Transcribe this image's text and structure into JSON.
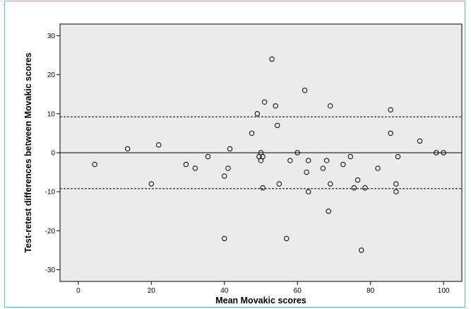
{
  "chart_data": {
    "type": "scatter",
    "title": "",
    "xlabel": "Mean Movakic scores",
    "ylabel": "Test-retest differences between Movakic scores",
    "xlim": [
      -5,
      105
    ],
    "ylim": [
      -33,
      33
    ],
    "xticks": [
      0,
      20,
      40,
      60,
      80,
      100
    ],
    "yticks": [
      -30,
      -20,
      -10,
      0,
      10,
      20,
      30
    ],
    "grid": false,
    "legend": "none",
    "plot_background": "#ebebeb",
    "marker": "open-circle",
    "reference_lines": [
      {
        "y": 0,
        "style": "solid"
      },
      {
        "y": 9.2,
        "style": "dashed"
      },
      {
        "y": -9.2,
        "style": "dashed"
      }
    ],
    "points": [
      {
        "x": 4.5,
        "y": -3
      },
      {
        "x": 13.5,
        "y": 1
      },
      {
        "x": 20,
        "y": -8
      },
      {
        "x": 22,
        "y": 2
      },
      {
        "x": 29.5,
        "y": -3
      },
      {
        "x": 32,
        "y": -4
      },
      {
        "x": 35.5,
        "y": -1
      },
      {
        "x": 40,
        "y": -6
      },
      {
        "x": 40,
        "y": -22
      },
      {
        "x": 41,
        "y": -4
      },
      {
        "x": 41.5,
        "y": 1
      },
      {
        "x": 47.5,
        "y": 5
      },
      {
        "x": 49,
        "y": 10
      },
      {
        "x": 49.5,
        "y": -1
      },
      {
        "x": 50,
        "y": 0
      },
      {
        "x": 50,
        "y": -2
      },
      {
        "x": 50.5,
        "y": -1
      },
      {
        "x": 50.5,
        "y": -9
      },
      {
        "x": 51,
        "y": 13
      },
      {
        "x": 53,
        "y": 24
      },
      {
        "x": 54,
        "y": 12
      },
      {
        "x": 54.5,
        "y": 7
      },
      {
        "x": 55,
        "y": -8
      },
      {
        "x": 57,
        "y": -22
      },
      {
        "x": 58,
        "y": -2
      },
      {
        "x": 60,
        "y": 0
      },
      {
        "x": 62,
        "y": 16
      },
      {
        "x": 62.5,
        "y": -5
      },
      {
        "x": 63,
        "y": -2
      },
      {
        "x": 63,
        "y": -10
      },
      {
        "x": 67,
        "y": -4
      },
      {
        "x": 68,
        "y": -2
      },
      {
        "x": 68.5,
        "y": -15
      },
      {
        "x": 69,
        "y": 12
      },
      {
        "x": 69,
        "y": -8
      },
      {
        "x": 72.5,
        "y": -3
      },
      {
        "x": 74.5,
        "y": -1
      },
      {
        "x": 75.5,
        "y": -9
      },
      {
        "x": 76.5,
        "y": -7
      },
      {
        "x": 77.5,
        "y": -25
      },
      {
        "x": 78.5,
        "y": -9
      },
      {
        "x": 82,
        "y": -4
      },
      {
        "x": 85.5,
        "y": 11
      },
      {
        "x": 85.5,
        "y": 5
      },
      {
        "x": 87,
        "y": -8
      },
      {
        "x": 87,
        "y": -10
      },
      {
        "x": 87.5,
        "y": -1
      },
      {
        "x": 93.5,
        "y": 3
      },
      {
        "x": 98,
        "y": 0
      },
      {
        "x": 100,
        "y": 0
      }
    ]
  }
}
